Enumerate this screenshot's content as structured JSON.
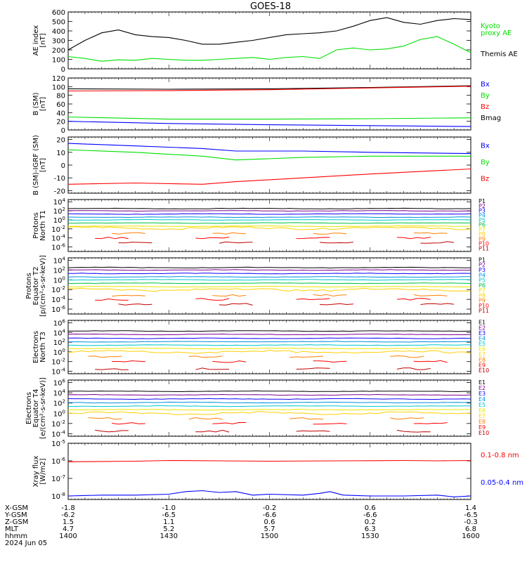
{
  "title": "GOES-18",
  "colors": {
    "black": "#000000",
    "red": "#ff0000",
    "green": "#00e000",
    "blue": "#0000ff",
    "P1": "#000000",
    "P2": "#7b0090",
    "P3": "#1000ff",
    "P4": "#0090e0",
    "P5": "#00c8c8",
    "P6": "#00c040",
    "P7": "#e8e800",
    "P8": "#ffd000",
    "P9": "#ff8000",
    "P10": "#ff0000",
    "P11": "#c00000",
    "E1": "#000000",
    "E2": "#7b0090",
    "E3": "#1000ff",
    "E4": "#0090e0",
    "E5": "#00c8c8",
    "E6": "#e8e800",
    "E7": "#ffd000",
    "E8": "#ff8000",
    "E9": "#ff0000",
    "E10": "#c00000"
  },
  "chart_data": [
    {
      "type": "line",
      "panel": "ae",
      "ylabel": [
        "AE index",
        "[nT]"
      ],
      "yticks": [
        "600",
        "500",
        "400",
        "300",
        "200",
        "100",
        "0"
      ],
      "ylim": [
        0,
        600
      ],
      "legend": [
        {
          "text": "Kyoto",
          "color": "green"
        },
        {
          "text": "proxy AE",
          "color": "green"
        },
        {
          "text": "Themis AE",
          "color": "black"
        }
      ],
      "series": [
        {
          "name": "Themis AE",
          "color": "black",
          "x": [
            0,
            5,
            10,
            15,
            20,
            25,
            30,
            35,
            40,
            45,
            50,
            55,
            60,
            65,
            70,
            75,
            80,
            85,
            90,
            95,
            100,
            105,
            110,
            115,
            120
          ],
          "y": [
            200,
            300,
            380,
            410,
            360,
            340,
            330,
            300,
            260,
            260,
            280,
            300,
            330,
            360,
            370,
            380,
            400,
            450,
            510,
            540,
            490,
            470,
            510,
            530,
            520
          ]
        },
        {
          "name": "Kyoto proxy AE",
          "color": "green",
          "x": [
            0,
            5,
            10,
            15,
            20,
            25,
            30,
            35,
            40,
            45,
            50,
            55,
            60,
            65,
            70,
            75,
            80,
            85,
            90,
            95,
            100,
            105,
            110,
            115,
            120
          ],
          "y": [
            130,
            110,
            80,
            95,
            90,
            110,
            100,
            90,
            90,
            100,
            110,
            120,
            100,
            120,
            130,
            110,
            200,
            220,
            200,
            210,
            240,
            310,
            340,
            260,
            170
          ]
        }
      ]
    },
    {
      "type": "line",
      "panel": "bsm",
      "ylabel": [
        "B (SM)",
        "[nT]"
      ],
      "yticks": [
        "120",
        "100",
        "80",
        "60",
        "40",
        "20",
        "0"
      ],
      "ylim": [
        0,
        120
      ],
      "legend": [
        {
          "text": "Bx",
          "color": "blue"
        },
        {
          "text": "By",
          "color": "green"
        },
        {
          "text": "Bz",
          "color": "red"
        },
        {
          "text": "Bmag",
          "color": "black"
        }
      ],
      "series": [
        {
          "name": "Bmag",
          "color": "black",
          "x": [
            0,
            30,
            60,
            90,
            120
          ],
          "y": [
            95,
            94,
            95,
            98,
            102
          ]
        },
        {
          "name": "Bz",
          "color": "red",
          "x": [
            0,
            30,
            60,
            90,
            120
          ],
          "y": [
            90,
            91,
            93,
            97,
            101
          ]
        },
        {
          "name": "By",
          "color": "green",
          "x": [
            0,
            30,
            60,
            90,
            120
          ],
          "y": [
            30,
            25,
            25,
            26,
            28
          ]
        },
        {
          "name": "Bx",
          "color": "blue",
          "x": [
            0,
            30,
            60,
            90,
            120
          ],
          "y": [
            20,
            15,
            12,
            10,
            8
          ]
        }
      ]
    },
    {
      "type": "line",
      "panel": "bigrf",
      "ylabel": [
        "B (SM)-IGRF (SM)",
        "[nT]"
      ],
      "yticks": [
        "20",
        "10",
        "0",
        "-10",
        "-20"
      ],
      "ylim": [
        -22,
        22
      ],
      "legend": [
        {
          "text": "Bx",
          "color": "blue"
        },
        {
          "text": "By",
          "color": "green"
        },
        {
          "text": "Bz",
          "color": "red"
        }
      ],
      "series": [
        {
          "name": "Bx",
          "color": "blue",
          "x": [
            0,
            20,
            40,
            50,
            70,
            90,
            120
          ],
          "y": [
            17,
            15,
            13,
            11,
            11,
            10,
            9
          ]
        },
        {
          "name": "By",
          "color": "green",
          "x": [
            0,
            20,
            40,
            50,
            70,
            90,
            120
          ],
          "y": [
            12,
            10,
            7,
            4,
            6,
            7,
            7
          ]
        },
        {
          "name": "Bz",
          "color": "red",
          "x": [
            0,
            20,
            40,
            50,
            70,
            90,
            120
          ],
          "y": [
            -15,
            -14,
            -15,
            -13,
            -10,
            -7,
            -3
          ]
        }
      ]
    },
    {
      "type": "line",
      "panel": "pn",
      "log": true,
      "ylabel": [
        "Protons",
        "North T1"
      ],
      "yticks_exp": [
        4,
        2,
        0,
        -2,
        -4,
        -6
      ],
      "ylim_exp": [
        -7,
        4.5
      ],
      "channels": [
        "P1",
        "P2",
        "P3",
        "P4",
        "P5",
        "P6",
        "P7",
        "P8",
        "P9",
        "P10",
        "P11"
      ],
      "levels": [
        2.5,
        2.0,
        1.3,
        0.6,
        0,
        -0.7,
        -1.4,
        -1.8,
        -3.0,
        -4.0,
        -5.0
      ]
    },
    {
      "type": "line",
      "panel": "pe",
      "log": true,
      "ylabel": [
        "Protons",
        "Equator T2",
        "[p/(cm²-s-sr-keV)]"
      ],
      "yticks_exp": [
        4,
        2,
        0,
        -2,
        -4,
        -6
      ],
      "ylim_exp": [
        -7,
        4.5
      ],
      "channels": [
        "P1",
        "P2",
        "P3",
        "P4",
        "P5",
        "P6",
        "P7",
        "P8",
        "P9",
        "P10",
        "P11"
      ],
      "levels": [
        2.5,
        2.0,
        1.3,
        0.6,
        0,
        -0.7,
        -1.4,
        -2.0,
        -3.2,
        -4.0,
        -5.0
      ]
    },
    {
      "type": "line",
      "panel": "en",
      "log": true,
      "ylabel": [
        "Electrons",
        "North T3"
      ],
      "yticks_exp": [
        6,
        4,
        2,
        0,
        -2,
        -4
      ],
      "ylim_exp": [
        -4.5,
        6.5
      ],
      "channels": [
        "E1",
        "E2",
        "E3",
        "E4",
        "E5",
        "E6",
        "E7",
        "E8",
        "E9",
        "E10"
      ],
      "levels": [
        4.3,
        3.6,
        2.8,
        2.1,
        1.4,
        0.7,
        0.0,
        -1.0,
        -2.0,
        -3.5
      ]
    },
    {
      "type": "line",
      "panel": "ee",
      "log": true,
      "ylabel": [
        "Electrons",
        "Equator T4",
        "[e/(cm²-s-sr-keV)]"
      ],
      "yticks_exp": [
        6,
        4,
        2,
        0,
        -2,
        -4
      ],
      "ylim_exp": [
        -4.5,
        6.5
      ],
      "channels": [
        "E1",
        "E2",
        "E3",
        "E4",
        "E5",
        "E6",
        "E7",
        "E8",
        "E9",
        "E10"
      ],
      "levels": [
        4.3,
        3.6,
        2.8,
        2.1,
        1.4,
        0.7,
        0.0,
        -1.0,
        -2.0,
        -3.5
      ]
    },
    {
      "type": "line",
      "panel": "xray",
      "log": true,
      "ylabel": [
        "Xray flux",
        "[W/m2]"
      ],
      "yticks_exp": [
        -5,
        -6,
        -7,
        -8
      ],
      "ylim_exp": [
        -8.2,
        -5
      ],
      "legend": [
        {
          "text": "0.1-0.8 nm",
          "color": "red"
        },
        {
          "text": "0.05-0.4 nm",
          "color": "blue"
        }
      ],
      "series": [
        {
          "name": "0.1-0.8 nm",
          "color": "red",
          "x": [
            0,
            20,
            30,
            45,
            60,
            80,
            90,
            100,
            110,
            120
          ],
          "y": [
            -6.05,
            -6.02,
            -5.98,
            -6.0,
            -6.02,
            -6.0,
            -5.99,
            -5.98,
            -6.0,
            -5.98
          ]
        },
        {
          "name": "0.05-0.4 nm",
          "color": "blue",
          "x": [
            0,
            10,
            20,
            30,
            35,
            40,
            45,
            50,
            55,
            60,
            70,
            75,
            78,
            82,
            90,
            100,
            110,
            115,
            120
          ],
          "y": [
            -8.0,
            -7.95,
            -7.95,
            -7.9,
            -7.75,
            -7.7,
            -7.8,
            -7.75,
            -7.95,
            -7.9,
            -7.95,
            -7.85,
            -7.75,
            -7.95,
            -8.0,
            -8.0,
            -7.95,
            -8.05,
            -8.0
          ]
        }
      ]
    }
  ],
  "xaxis": {
    "ticks": [
      0,
      30,
      60,
      90,
      120
    ],
    "rows": [
      {
        "label": "X-GSM",
        "values": [
          "-1.8",
          "-1.0",
          "-0.2",
          "0.6",
          "1.4"
        ]
      },
      {
        "label": "Y-GSM",
        "values": [
          "-6.2",
          "-6.5",
          "-6.6",
          "-6.6",
          "-6.5"
        ]
      },
      {
        "label": "Z-GSM",
        "values": [
          "1.5",
          "1.1",
          "0.6",
          "0.2",
          "-0.3"
        ]
      },
      {
        "label": "MLT",
        "values": [
          "4.7",
          "5.2",
          "5.7",
          "6.3",
          "6.8"
        ]
      },
      {
        "label": "hhmm",
        "values": [
          "1400",
          "1430",
          "1500",
          "1530",
          "1600"
        ]
      }
    ],
    "date": "2024 Jun 05"
  }
}
